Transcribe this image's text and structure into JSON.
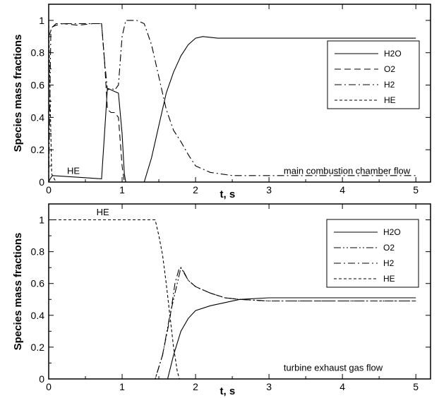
{
  "chart_data": [
    {
      "type": "line",
      "xlabel": "t, s",
      "ylabel": "Species mass fractions",
      "xlim": [
        0,
        5.2
      ],
      "ylim": [
        0,
        1.1
      ],
      "xticks": [
        "0",
        "1",
        "2",
        "3",
        "4",
        "5"
      ],
      "yticks": [
        "0",
        "0.2",
        "0.4",
        "0.6",
        "0.8",
        "1"
      ],
      "grid": false,
      "legend_position": "top-right",
      "annotations": [
        {
          "text": "HE",
          "x": 0.25,
          "y": 0.05
        },
        {
          "text": "main combustion chamber flow",
          "x": 3.2,
          "y": 0.05
        }
      ],
      "series": [
        {
          "name": "H2O",
          "dash": "solid",
          "points": [
            [
              0,
              0
            ],
            [
              0.02,
              0.02
            ],
            [
              0.05,
              0.04
            ],
            [
              0.72,
              0.02
            ],
            [
              0.76,
              0.3
            ],
            [
              0.8,
              0.58
            ],
            [
              0.85,
              0.57
            ],
            [
              0.9,
              0.56
            ],
            [
              0.95,
              0.55
            ],
            [
              1.0,
              0.3
            ],
            [
              1.03,
              0.05
            ],
            [
              1.05,
              0.0
            ],
            [
              1.3,
              0.0
            ],
            [
              1.4,
              0.15
            ],
            [
              1.5,
              0.35
            ],
            [
              1.6,
              0.55
            ],
            [
              1.7,
              0.68
            ],
            [
              1.8,
              0.78
            ],
            [
              1.9,
              0.85
            ],
            [
              2.0,
              0.89
            ],
            [
              2.1,
              0.9
            ],
            [
              2.3,
              0.89
            ],
            [
              3.0,
              0.89
            ],
            [
              4.0,
              0.89
            ],
            [
              5.0,
              0.89
            ]
          ]
        },
        {
          "name": "O2",
          "dash": "dashed",
          "points": [
            [
              0,
              0.9
            ],
            [
              0.05,
              0.96
            ],
            [
              0.1,
              0.97
            ],
            [
              0.2,
              0.98
            ],
            [
              0.4,
              0.97
            ],
            [
              0.6,
              0.98
            ],
            [
              0.72,
              0.98
            ],
            [
              0.76,
              0.75
            ],
            [
              0.8,
              0.45
            ],
            [
              0.85,
              0.43
            ],
            [
              0.9,
              0.43
            ],
            [
              0.95,
              0.4
            ],
            [
              1.0,
              0.1
            ],
            [
              1.03,
              0.0
            ],
            [
              1.05,
              0.0
            ],
            [
              5.0,
              0.0
            ]
          ]
        },
        {
          "name": "H2",
          "dash": "dashdot",
          "points": [
            [
              0,
              0.0
            ],
            [
              0.03,
              0.95
            ],
            [
              0.1,
              0.98
            ],
            [
              0.72,
              0.98
            ],
            [
              0.76,
              0.75
            ],
            [
              0.8,
              0.57
            ],
            [
              0.85,
              0.58
            ],
            [
              0.9,
              0.57
            ],
            [
              0.95,
              0.6
            ],
            [
              1.0,
              0.9
            ],
            [
              1.05,
              1.0
            ],
            [
              1.2,
              1.0
            ],
            [
              1.3,
              0.98
            ],
            [
              1.4,
              0.85
            ],
            [
              1.5,
              0.65
            ],
            [
              1.6,
              0.45
            ],
            [
              1.7,
              0.32
            ],
            [
              1.8,
              0.25
            ],
            [
              1.9,
              0.17
            ],
            [
              2.0,
              0.1
            ],
            [
              2.2,
              0.06
            ],
            [
              2.5,
              0.04
            ],
            [
              3.0,
              0.04
            ],
            [
              4.0,
              0.04
            ],
            [
              5.0,
              0.04
            ]
          ]
        },
        {
          "name": "HE",
          "dash": "dashed-fine",
          "points": [
            [
              0,
              1.0
            ],
            [
              0.02,
              0.5
            ],
            [
              0.04,
              0.05
            ],
            [
              0.1,
              0.0
            ],
            [
              5.0,
              0.0
            ]
          ]
        }
      ]
    },
    {
      "type": "line",
      "xlabel": "t, s",
      "ylabel": "Species mass fractions",
      "xlim": [
        0,
        5.2
      ],
      "ylim": [
        0,
        1.1
      ],
      "xticks": [
        "0",
        "1",
        "2",
        "3",
        "4",
        "5"
      ],
      "yticks": [
        "0",
        "0.2",
        "0.4",
        "0.6",
        "0.8",
        "1"
      ],
      "grid": false,
      "legend_position": "top-right",
      "annotations": [
        {
          "text": "HE",
          "x": 0.65,
          "y": 1.03
        },
        {
          "text": "turbine exhaust gas flow",
          "x": 3.2,
          "y": 0.05
        }
      ],
      "series": [
        {
          "name": "H2O",
          "dash": "solid",
          "points": [
            [
              0,
              0
            ],
            [
              1.62,
              0.0
            ],
            [
              1.7,
              0.15
            ],
            [
              1.8,
              0.3
            ],
            [
              1.9,
              0.38
            ],
            [
              2.0,
              0.43
            ],
            [
              2.2,
              0.46
            ],
            [
              2.4,
              0.48
            ],
            [
              2.6,
              0.5
            ],
            [
              3.0,
              0.51
            ],
            [
              4.0,
              0.51
            ],
            [
              5.0,
              0.51
            ]
          ]
        },
        {
          "name": "O2",
          "dash": "dashdotdot",
          "points": [
            [
              0,
              0
            ],
            [
              1.45,
              0.0
            ],
            [
              1.55,
              0.15
            ],
            [
              1.65,
              0.4
            ],
            [
              1.75,
              0.6
            ],
            [
              1.8,
              0.7
            ],
            [
              1.85,
              0.66
            ],
            [
              1.9,
              0.62
            ],
            [
              2.0,
              0.58
            ],
            [
              2.2,
              0.54
            ],
            [
              2.4,
              0.51
            ],
            [
              2.6,
              0.5
            ],
            [
              3.0,
              0.49
            ],
            [
              4.0,
              0.49
            ],
            [
              5.0,
              0.49
            ]
          ]
        },
        {
          "name": "H2",
          "dash": "dashdot",
          "points": [
            [
              0,
              0
            ],
            [
              1.45,
              0.0
            ],
            [
              1.55,
              0.15
            ],
            [
              1.65,
              0.38
            ],
            [
              1.72,
              0.6
            ],
            [
              1.78,
              0.7
            ],
            [
              1.82,
              0.69
            ],
            [
              1.9,
              0.62
            ],
            [
              2.0,
              0.58
            ],
            [
              2.2,
              0.54
            ],
            [
              2.4,
              0.51
            ],
            [
              2.6,
              0.5
            ],
            [
              3.0,
              0.49
            ],
            [
              4.0,
              0.49
            ],
            [
              5.0,
              0.49
            ]
          ]
        },
        {
          "name": "HE",
          "dash": "dashed-fine",
          "points": [
            [
              0,
              1.0
            ],
            [
              1.45,
              1.0
            ],
            [
              1.5,
              0.9
            ],
            [
              1.55,
              0.78
            ],
            [
              1.6,
              0.6
            ],
            [
              1.65,
              0.4
            ],
            [
              1.7,
              0.2
            ],
            [
              1.75,
              0.05
            ],
            [
              1.78,
              0.0
            ]
          ]
        }
      ]
    }
  ]
}
